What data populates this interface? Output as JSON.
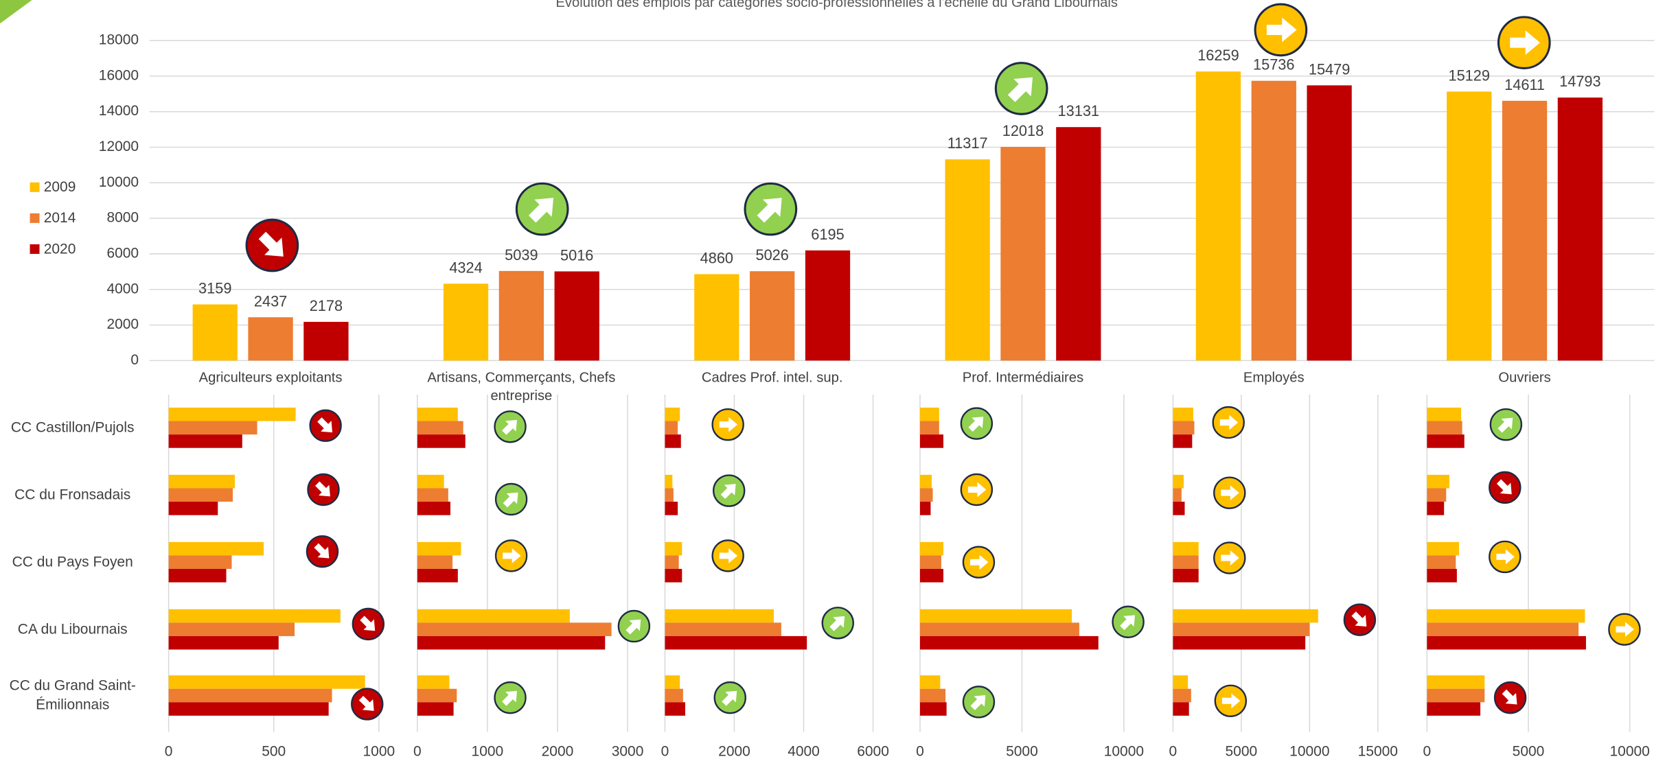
{
  "chart_data": [
    {
      "type": "bar",
      "title": "Évolution des emplois par catégories socio-professionnelles à l'échelle du Grand Libournais",
      "categories": [
        "Agriculteurs exploitants",
        "Artisans, Commerçants, Chefs entreprise",
        "Cadres Prof. intel. sup.",
        "Prof. Intermédiaires",
        "Employés",
        "Ouvriers"
      ],
      "series": [
        {
          "name": "2009",
          "color": "#ffc000",
          "values": [
            3159,
            4324,
            4860,
            11317,
            16259,
            15129
          ]
        },
        {
          "name": "2014",
          "color": "#ed7d31",
          "values": [
            2437,
            5039,
            5026,
            12018,
            15736,
            14611
          ]
        },
        {
          "name": "2020",
          "color": "#c00000",
          "values": [
            2178,
            5016,
            6195,
            13131,
            15479,
            14793
          ]
        }
      ],
      "ylim": [
        0,
        18000
      ],
      "yticks": [
        0,
        2000,
        4000,
        6000,
        8000,
        10000,
        12000,
        14000,
        16000,
        18000
      ],
      "grid": true,
      "legend": "left"
    },
    {
      "type": "barh",
      "categories": [
        "CC Castillon/Pujols",
        "CC du Fronsadais",
        "CC du Pays Foyen",
        "CA du Libournais",
        "CC du Grand Saint-Émilionnais"
      ],
      "panels": [
        {
          "xlim": [
            0,
            1000
          ],
          "xticks": [
            0,
            500,
            1000
          ],
          "series": [
            {
              "values": [
                604,
                315,
                452,
                817,
                934
              ]
            },
            {
              "values": [
                421,
                305,
                300,
                599,
                777
              ]
            },
            {
              "values": [
                350,
                234,
                274,
                523,
                761
              ]
            }
          ]
        },
        {
          "xlim": [
            0,
            3000
          ],
          "xticks": [
            0,
            1000,
            2000,
            3000
          ],
          "series": [
            {
              "values": [
                578,
                380,
                624,
                2176,
                457
              ]
            },
            {
              "values": [
                655,
                441,
                502,
                2770,
                563
              ]
            },
            {
              "values": [
                685,
                472,
                578,
                2679,
                517
              ]
            }
          ]
        },
        {
          "xlim": [
            0,
            6000
          ],
          "xticks": [
            0,
            2000,
            4000,
            6000
          ],
          "series": [
            {
              "values": [
                431,
                215,
                492,
                3138,
                431
              ]
            },
            {
              "values": [
                369,
                246,
                400,
                3354,
                523
              ]
            },
            {
              "values": [
                462,
                369,
                492,
                4092,
                585
              ]
            }
          ]
        },
        {
          "xlim": [
            0,
            10000
          ],
          "xticks": [
            0,
            5000,
            10000
          ],
          "series": [
            {
              "values": [
                938,
                573,
                1146,
                7448,
                990
              ]
            },
            {
              "values": [
                938,
                625,
                1042,
                7813,
                1250
              ]
            },
            {
              "values": [
                1146,
                521,
                1146,
                8750,
                1302
              ]
            }
          ]
        },
        {
          "xlim": [
            0,
            15000
          ],
          "xticks": [
            0,
            5000,
            10000,
            15000
          ],
          "series": [
            {
              "values": [
                1484,
                781,
                1875,
                10625,
                1094
              ]
            },
            {
              "values": [
                1563,
                625,
                1875,
                10000,
                1328
              ]
            },
            {
              "values": [
                1406,
                859,
                1875,
                9688,
                1172
              ]
            }
          ]
        },
        {
          "xlim": [
            0,
            10000
          ],
          "xticks": [
            0,
            5000,
            10000
          ],
          "series": [
            {
              "values": [
                1684,
                1105,
                1579,
                7789,
                2842
              ]
            },
            {
              "values": [
                1737,
                947,
                1421,
                7474,
                2842
              ]
            },
            {
              "values": [
                1842,
                842,
                1474,
                7842,
                2632
              ]
            }
          ]
        }
      ]
    }
  ]
}
